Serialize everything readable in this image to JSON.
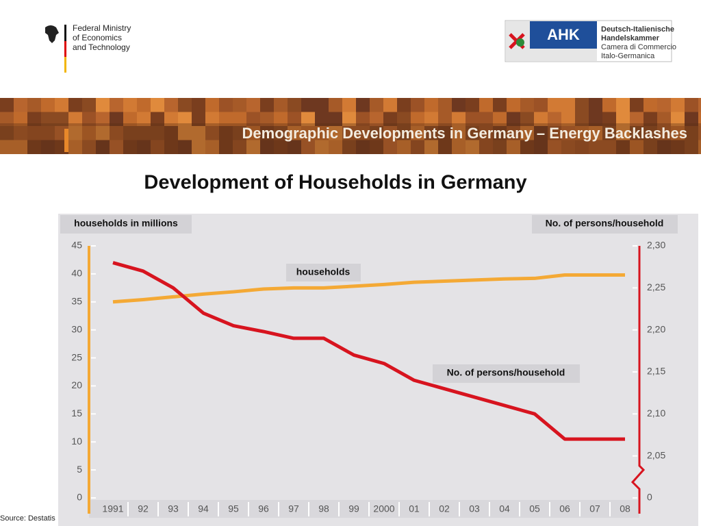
{
  "header": {
    "ministry": [
      "Federal Ministry",
      "of Economics",
      "and Technology"
    ],
    "ahk": "AHK",
    "chamber": [
      "Deutsch-Italienische",
      "Handelskammer",
      "Camera di Commercio",
      "Italo-Germanica"
    ],
    "banner_title": "Demographic Developments in Germany – Energy Backlashes"
  },
  "chart_data": {
    "type": "line",
    "title": "Development of Households in Germany",
    "ylabel": "households in millions",
    "y2label": "No. of persons/household",
    "categories": [
      "1991",
      "92",
      "93",
      "94",
      "95",
      "96",
      "97",
      "98",
      "99",
      "2000",
      "01",
      "02",
      "03",
      "04",
      "05",
      "06",
      "07",
      "08"
    ],
    "series": [
      {
        "name": "households",
        "color": "#f4a935",
        "values": [
          35.0,
          35.4,
          35.9,
          36.4,
          36.8,
          37.3,
          37.5,
          37.5,
          37.8,
          38.1,
          38.5,
          38.7,
          38.9,
          39.1,
          39.2,
          39.8,
          39.8,
          39.8
        ]
      },
      {
        "name": "No. of persons/household",
        "color": "#d7141f",
        "axis": "y2",
        "values": [
          2.28,
          2.27,
          2.25,
          2.22,
          2.205,
          2.198,
          2.19,
          2.19,
          2.17,
          2.16,
          2.14,
          2.13,
          2.12,
          2.11,
          2.1,
          2.07,
          2.07,
          2.07
        ]
      }
    ],
    "ylim": [
      0,
      45
    ],
    "yticks": [
      0,
      5,
      10,
      15,
      20,
      25,
      30,
      35,
      40,
      45
    ],
    "y2lim": [
      2.0,
      2.3
    ],
    "y2ticks": [
      0,
      {
        "value": 2.05,
        "label": "2,05"
      },
      {
        "value": 2.1,
        "label": "2,10"
      },
      {
        "value": 2.15,
        "label": "2,15"
      },
      {
        "value": 2.2,
        "label": "2,20"
      },
      {
        "value": 2.25,
        "label": "2,25"
      },
      {
        "value": 2.3,
        "label": "2,30"
      }
    ],
    "grid": false
  },
  "footer": {
    "source": "Source: Destatis"
  }
}
